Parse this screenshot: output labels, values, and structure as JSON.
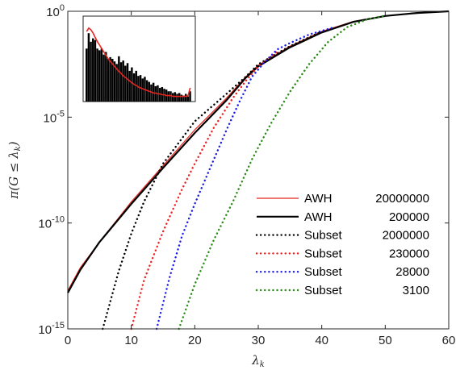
{
  "chart_data": {
    "type": "line",
    "xlabel": "λ_k",
    "ylabel": "π(G ≤ λ_k)",
    "xlim": [
      0,
      60
    ],
    "ylim_log10": [
      -15,
      0
    ],
    "yscale": "log",
    "x_ticks": [
      0,
      10,
      20,
      30,
      40,
      50,
      60
    ],
    "x_tick_labels": [
      "0",
      "10",
      "20",
      "30",
      "40",
      "50",
      "60"
    ],
    "y_ticks_log10": [
      -15,
      -10,
      -5,
      0
    ],
    "y_tick_labels": [
      {
        "base": "10",
        "exp": "-15"
      },
      {
        "base": "10",
        "exp": "-10"
      },
      {
        "base": "10",
        "exp": "-5"
      },
      {
        "base": "10",
        "exp": "0"
      }
    ],
    "grid": false,
    "legend_position": "bottom-right",
    "series": [
      {
        "name": "AWH",
        "n": "20000000",
        "color": "#e8251f",
        "style": "solid",
        "width": 1.2,
        "points": [
          [
            0,
            -13.2
          ],
          [
            2,
            -12.1
          ],
          [
            5,
            -10.9
          ],
          [
            10,
            -9.0
          ],
          [
            15,
            -7.3
          ],
          [
            20,
            -5.6
          ],
          [
            25,
            -4.1
          ],
          [
            28,
            -3.1
          ],
          [
            30,
            -2.55
          ],
          [
            35,
            -1.65
          ],
          [
            40,
            -0.95
          ],
          [
            45,
            -0.48
          ],
          [
            50,
            -0.22
          ],
          [
            55,
            -0.08
          ],
          [
            60,
            0
          ]
        ]
      },
      {
        "name": "AWH",
        "n": "200000",
        "color": "#000000",
        "style": "solid",
        "width": 2.2,
        "points": [
          [
            0,
            -13.3
          ],
          [
            2,
            -12.2
          ],
          [
            5,
            -10.9
          ],
          [
            10,
            -9.1
          ],
          [
            15,
            -7.4
          ],
          [
            20,
            -5.75
          ],
          [
            25,
            -4.2
          ],
          [
            28,
            -3.15
          ],
          [
            30,
            -2.6
          ],
          [
            35,
            -1.7
          ],
          [
            40,
            -1.0
          ],
          [
            45,
            -0.5
          ],
          [
            50,
            -0.22
          ],
          [
            55,
            -0.08
          ],
          [
            60,
            0
          ]
        ]
      },
      {
        "name": "Subset",
        "n": "2000000",
        "color": "#000000",
        "style": "dotted",
        "width": 2.4,
        "points": [
          [
            5.5,
            -15
          ],
          [
            8,
            -12.3
          ],
          [
            10,
            -10.5
          ],
          [
            12,
            -9.0
          ],
          [
            15,
            -7.2
          ],
          [
            20,
            -5.2
          ],
          [
            25,
            -3.9
          ],
          [
            28,
            -3.1
          ],
          [
            30,
            -2.5
          ],
          [
            35,
            -1.65
          ],
          [
            40,
            -0.95
          ]
        ]
      },
      {
        "name": "Subset",
        "n": "230000",
        "color": "#ee2020",
        "style": "dotted",
        "width": 2.4,
        "points": [
          [
            10,
            -15
          ],
          [
            12,
            -12.7
          ],
          [
            15,
            -10.4
          ],
          [
            18,
            -8.4
          ],
          [
            20,
            -7.2
          ],
          [
            23,
            -5.5
          ],
          [
            26,
            -4.1
          ],
          [
            28,
            -3.3
          ],
          [
            30,
            -2.6
          ],
          [
            33,
            -1.9
          ]
        ]
      },
      {
        "name": "Subset",
        "n": "28000",
        "color": "#1a1aee",
        "style": "dotted",
        "width": 2.4,
        "points": [
          [
            14,
            -15
          ],
          [
            16,
            -12.6
          ],
          [
            18,
            -10.6
          ],
          [
            20,
            -9.1
          ],
          [
            23,
            -7.0
          ],
          [
            25,
            -5.6
          ],
          [
            27,
            -4.3
          ],
          [
            29,
            -3.1
          ],
          [
            31,
            -2.4
          ],
          [
            33,
            -1.8
          ],
          [
            35,
            -1.5
          ],
          [
            38,
            -1.1
          ],
          [
            42,
            -0.75
          ]
        ]
      },
      {
        "name": "Subset",
        "n": "3100",
        "color": "#2a8a14",
        "style": "dotted",
        "width": 2.4,
        "points": [
          [
            17.5,
            -15
          ],
          [
            20,
            -12.9
          ],
          [
            23,
            -10.8
          ],
          [
            26,
            -9.0
          ],
          [
            29,
            -7.0
          ],
          [
            32,
            -5.3
          ],
          [
            35,
            -3.8
          ],
          [
            38,
            -2.5
          ],
          [
            41,
            -1.45
          ],
          [
            44,
            -0.75
          ],
          [
            47,
            -0.4
          ],
          [
            50,
            -0.2
          ]
        ]
      }
    ],
    "inset": {
      "bar_color": "#000000",
      "line_color": "#e8251f",
      "bars": [
        0.62,
        0.8,
        0.7,
        0.74,
        0.72,
        0.62,
        0.6,
        0.62,
        0.55,
        0.58,
        0.5,
        0.52,
        0.5,
        0.47,
        0.44,
        0.53,
        0.46,
        0.48,
        0.42,
        0.45,
        0.36,
        0.4,
        0.33,
        0.36,
        0.3,
        0.31,
        0.27,
        0.29,
        0.25,
        0.23,
        0.2,
        0.22,
        0.18,
        0.19,
        0.16,
        0.17,
        0.15,
        0.14,
        0.12,
        0.12,
        0.1,
        0.11,
        0.09,
        0.1,
        0.08,
        0.07,
        0.09,
        0.06,
        0.12
      ],
      "line": [
        0.82,
        0.86,
        0.84,
        0.8,
        0.75,
        0.7,
        0.66,
        0.62,
        0.58,
        0.54,
        0.5,
        0.47,
        0.44,
        0.41,
        0.38,
        0.35,
        0.33,
        0.3,
        0.28,
        0.26,
        0.24,
        0.22,
        0.2,
        0.19,
        0.17,
        0.16,
        0.15,
        0.14,
        0.13,
        0.12,
        0.11,
        0.1,
        0.1,
        0.09,
        0.09,
        0.08,
        0.08,
        0.07,
        0.07,
        0.07,
        0.06,
        0.06,
        0.06,
        0.06,
        0.06,
        0.06,
        0.06,
        0.07,
        0.16
      ]
    }
  }
}
